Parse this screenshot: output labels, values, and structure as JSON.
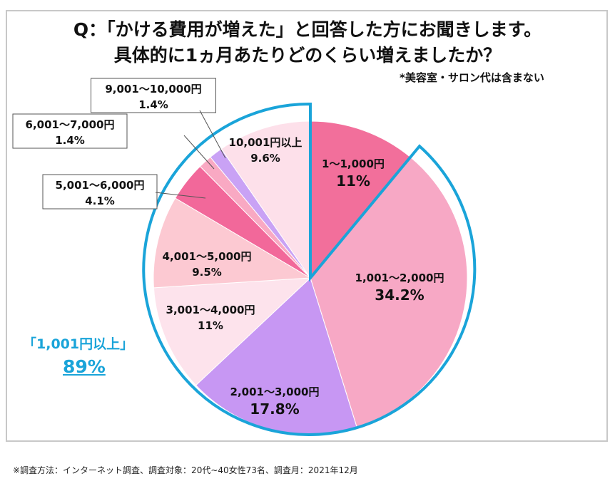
{
  "title_line1": "Q：「かける費用が増えた」と回答した方にお聞きします。",
  "title_line2": "具体的に1ヵ月あたりどのくらい増えましたか？",
  "note": "*美容室・サロン代は含まない",
  "footer": "※調査方法：インターネット調査、調査対象：20代~40女性73名、調査月：2021年12月",
  "highlight": {
    "label": "「1,001円以上」",
    "value": "89%",
    "color": "#1aa4d9"
  },
  "chart_data": {
    "type": "pie",
    "start": "12 o'clock, clockwise",
    "categories": [
      "1～1,000円",
      "1,001～2,000円",
      "2,001～3,000円",
      "3,001～4,000円",
      "4,001～5,000円",
      "5,001～6,000円",
      "6,001～7,000円",
      "9,001～10,000円",
      "10,001円以上"
    ],
    "values": [
      11,
      34.2,
      17.8,
      11,
      9.5,
      4.1,
      1.4,
      1.4,
      9.6
    ],
    "value_labels": [
      "11%",
      "34.2%",
      "17.8%",
      "11%",
      "9.5%",
      "4.1%",
      "1.4%",
      "1.4%",
      "9.6%"
    ],
    "colors": [
      "#f26f9b",
      "#f7a8c5",
      "#c797f3",
      "#fde3ec",
      "#fcc9d2",
      "#f2689a",
      "#f9a9c3",
      "#c9a2f5",
      "#fde0ea"
    ]
  }
}
